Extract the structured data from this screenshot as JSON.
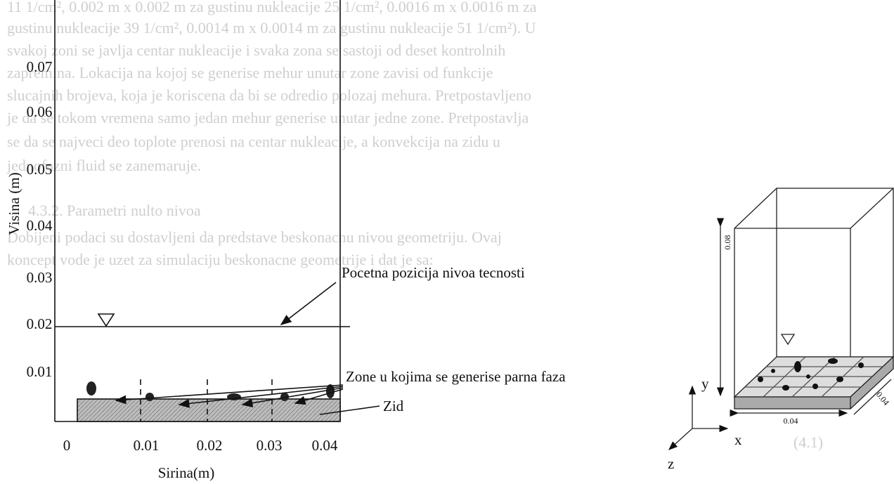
{
  "background_text": [
    "11 1/cm², 0.002 m x 0.002 m za gustinu nukleacije 25 1/cm², 0.0016 m x 0.0016 m za",
    "gustinu nukleacije 39 1/cm², 0.0014 m x 0.0014 m za gustinu nukleacije 51 1/cm²). U",
    "svakoj zoni se javlja centar nukleacije i svaka zona se sastoji od deset kontrolnih",
    "zapremina. Lokacija na kojoj se generise mehur unutar zone zavisi od funkcije",
    "slucajnih brojeva, koja je koriscena da bi se odredio polozaj mehura. Pretpostavljeno",
    "je da se tokom vremena samo jedan mehur generise unutar jedne zone. Pretpostavlja",
    "se da se najveci deo toplote prenosi na centar nukleacije, a konvekcija na zidu u",
    "jednofazni fluid se zanemaruje.",
    "4.3.2. Parametri nulto nivoa",
    "Dobijeni podaci su dostavljeni da predstave beskonacnu nivou geometriju. Ovaj",
    "koncept vode je uzet za simulaciju beskonacne geometrije i dat je sa:"
  ],
  "left_figure": {
    "y_axis_label": "Visina (m)",
    "x_axis_label": "Sirina(m)",
    "y_ticks": [
      "0.07",
      "0.06",
      "0.05",
      "0.04",
      "0.03",
      "0.02",
      "0.01"
    ],
    "x_ticks": [
      "0",
      "0.01",
      "0.02",
      "0.03",
      "0.04"
    ],
    "annotations": [
      "Pocetna pozicija nivoa tecnosti",
      "Zone u kojima se generise parna faza",
      "Zid"
    ]
  },
  "right_figure": {
    "height_label": "0.08",
    "width_label": "0.04",
    "depth_label": "0.04",
    "axes": [
      "y",
      "x",
      "z"
    ],
    "equation_number": "(4.1)"
  }
}
